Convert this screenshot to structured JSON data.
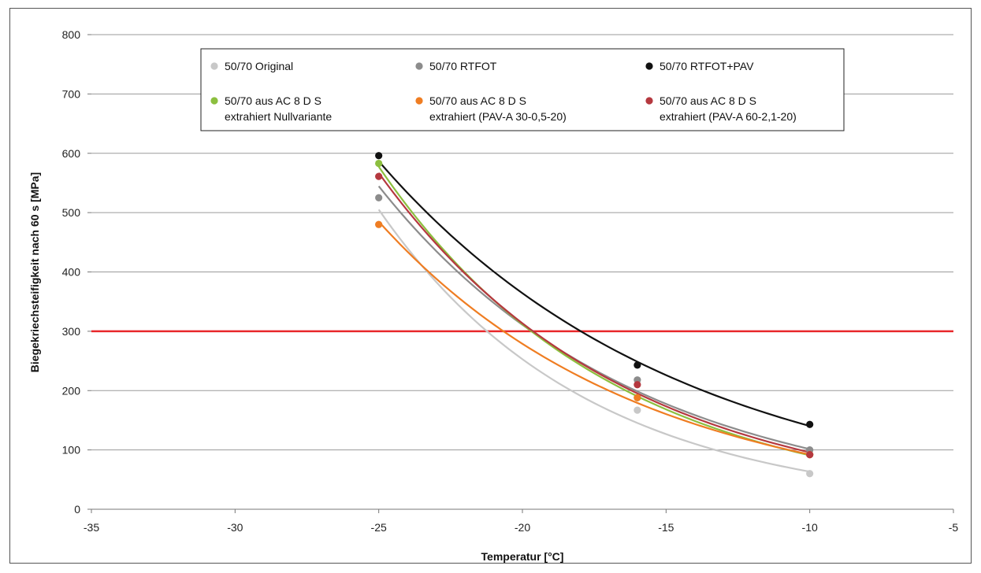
{
  "chart_data": {
    "type": "scatter",
    "xlabel": "Temperatur [°C]",
    "ylabel": "Biegekriechsteifigkeit nach 60 s [MPa]",
    "xlim": [
      -35,
      -5
    ],
    "ylim": [
      0,
      800
    ],
    "x_ticks": [
      -35,
      -30,
      -25,
      -20,
      -15,
      -10,
      -5
    ],
    "y_ticks": [
      0,
      100,
      200,
      300,
      400,
      500,
      600,
      700,
      800
    ],
    "x_tick_labels": [
      "-35",
      "-30",
      "-25",
      "-20",
      "-15",
      "-10",
      "-5"
    ],
    "y_tick_labels": [
      "0",
      "100",
      "200",
      "300",
      "400",
      "500",
      "600",
      "700",
      "800"
    ],
    "grid": "horizontal",
    "legend_position": "top-center",
    "reference_line": {
      "y": 300,
      "color": "#e8282b"
    },
    "series": [
      {
        "name": "50/70 Original",
        "name_lines": [
          "50/70 Original"
        ],
        "color": "#c8c8c8",
        "x": [
          -25,
          -16,
          -10
        ],
        "y": [
          480,
          167,
          60
        ],
        "trend_y": [
          503,
          147,
          63
        ]
      },
      {
        "name": "50/70 RTFOT",
        "name_lines": [
          "50/70 RTFOT"
        ],
        "color": "#8c8c8c",
        "x": [
          -25,
          -16,
          -10
        ],
        "y": [
          525,
          218,
          100
        ],
        "trend_y": [
          543,
          200,
          101
        ]
      },
      {
        "name": "50/70 RTFOT+PAV",
        "name_lines": [
          "50/70 RTFOT+PAV"
        ],
        "color": "#111111",
        "x": [
          -25,
          -16,
          -10
        ],
        "y": [
          596,
          243,
          143
        ],
        "trend_y": [
          594,
          241,
          143
        ]
      },
      {
        "name": "50/70 aus AC 8 D S extrahiert Nullvariante",
        "name_lines": [
          "50/70 aus AC 8 D S",
          "extrahiert Nullvariante"
        ],
        "color": "#8cbf3f",
        "x": [
          -25,
          -16,
          -10
        ],
        "y": [
          583,
          188,
          92
        ],
        "trend_y": [
          578,
          190,
          91
        ]
      },
      {
        "name": "50/70 aus AC 8 D S extrahiert (PAV-A 30-0,5-20)",
        "name_lines": [
          "50/70 aus AC 8 D S",
          "extrahiert (PAV-A 30-0,5-20)"
        ],
        "color": "#ef7d22",
        "x": [
          -25,
          -16,
          -10
        ],
        "y": [
          480,
          188,
          92
        ],
        "trend_y": [
          484,
          180,
          92
        ]
      },
      {
        "name": "50/70 aus AC 8 D S extrahiert (PAV-A 60-2,1-20)",
        "name_lines": [
          "50/70 aus AC 8 D S",
          "extrahiert (PAV-A 60-2,1-20)"
        ],
        "color": "#b5383f",
        "x": [
          -25,
          -16,
          -10
        ],
        "y": [
          561,
          210,
          92
        ],
        "trend_y": [
          567,
          195,
          96
        ]
      }
    ]
  }
}
